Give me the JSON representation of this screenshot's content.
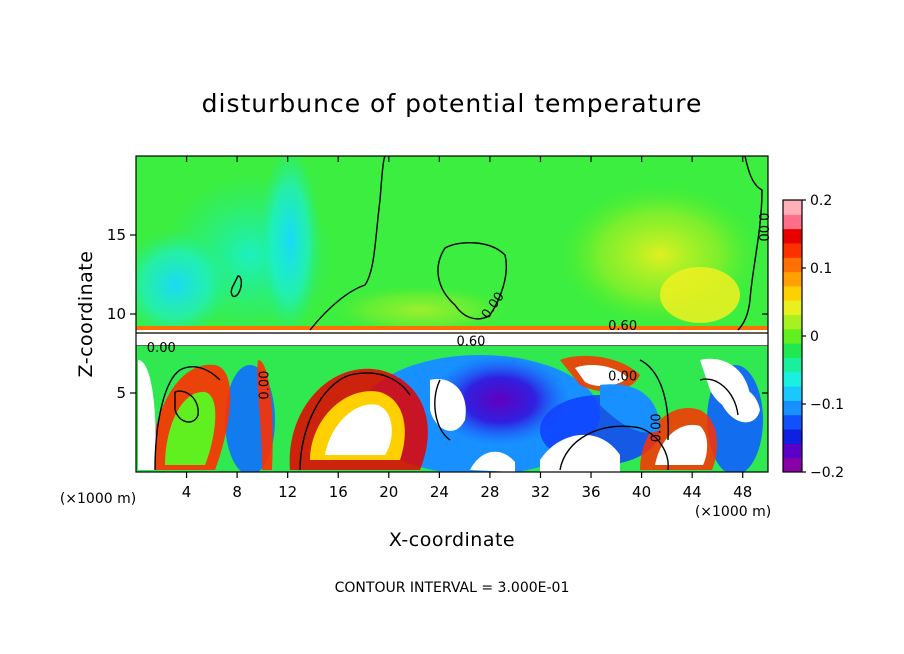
{
  "chart_data": {
    "type": "heatmap",
    "title": "disturbunce of potential temperature",
    "xlabel": "X-coordinate",
    "ylabel": "Z-coordinate",
    "x_unit": "(×1000 m)",
    "xlim": [
      0,
      50
    ],
    "ylim": [
      0,
      20
    ],
    "x_ticks": [
      4,
      8,
      12,
      16,
      20,
      24,
      28,
      32,
      36,
      40,
      44,
      48
    ],
    "y_ticks": [
      5,
      10,
      15
    ],
    "colorbar": {
      "range": [
        -0.2,
        0.2
      ],
      "ticks": [
        {
          "value": 0.2,
          "label": "0.2"
        },
        {
          "value": 0.1,
          "label": "0.1"
        },
        {
          "value": 0,
          "label": "0"
        },
        {
          "value": -0.1,
          "label": "−0.1"
        },
        {
          "value": -0.2,
          "label": "−0.2"
        }
      ],
      "colors": [
        "#8a00a8",
        "#5a00c8",
        "#1020e0",
        "#1050ff",
        "#1890ff",
        "#18c8ff",
        "#18f0e0",
        "#18f0a0",
        "#20e850",
        "#60f020",
        "#a8f020",
        "#e8f020",
        "#ffd000",
        "#ffa000",
        "#ff7000",
        "#ff3000",
        "#e80000",
        "#ff7088",
        "#ffb0b8"
      ]
    },
    "contour_interval": "CONTOUR INTERVAL = 3.000E-01",
    "contour_labels": [
      {
        "x": 2,
        "z": 7.6,
        "text": "0.00"
      },
      {
        "x": 10.5,
        "z": 5.5,
        "text": "0.00",
        "rotate": -90
      },
      {
        "x": 28.5,
        "z": 10.4,
        "text": "0.00",
        "rotate": -55
      },
      {
        "x": 26.5,
        "z": 8.0,
        "text": "0.60"
      },
      {
        "x": 38.5,
        "z": 9.0,
        "text": "0.60"
      },
      {
        "x": 38.5,
        "z": 5.8,
        "text": "0.00"
      },
      {
        "x": 41.5,
        "z": 2.8,
        "text": "0.00",
        "rotate": -90
      },
      {
        "x": 49.3,
        "z": 15.5,
        "text": "0.00",
        "rotate": 90
      }
    ]
  }
}
